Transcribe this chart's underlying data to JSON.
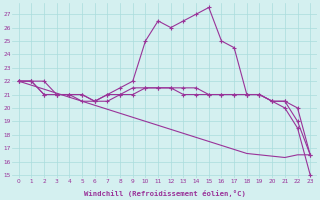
{
  "x": [
    0,
    1,
    2,
    3,
    4,
    5,
    6,
    7,
    8,
    9,
    10,
    11,
    12,
    13,
    14,
    15,
    16,
    17,
    18,
    19,
    20,
    21,
    22,
    23
  ],
  "line_peak": [
    22,
    22,
    21,
    21,
    21,
    21,
    20.5,
    21,
    21.5,
    22,
    25,
    26.5,
    26,
    26.5,
    27,
    27.5,
    25,
    24.5,
    21,
    21,
    20.5,
    20,
    18.5,
    15
  ],
  "line_mid1": [
    22,
    22,
    22,
    21,
    21,
    20.5,
    20.5,
    20.5,
    21,
    21,
    21.5,
    21.5,
    21.5,
    21,
    21,
    21,
    21,
    21,
    21,
    21,
    20.5,
    20.5,
    19,
    16.5
  ],
  "line_mid2": [
    22,
    22,
    21,
    21,
    21,
    21,
    20.5,
    21,
    21,
    21.5,
    21.5,
    21.5,
    21.5,
    21.5,
    21.5,
    21,
    21,
    21,
    21,
    21,
    20.5,
    20.5,
    20,
    16.5
  ],
  "line_diag": [
    22,
    21.7,
    21.4,
    21.1,
    20.8,
    20.5,
    20.2,
    19.9,
    19.6,
    19.3,
    19.0,
    18.7,
    18.4,
    18.1,
    17.8,
    17.5,
    17.2,
    16.9,
    16.6,
    16.5,
    16.4,
    16.3,
    16.5,
    16.5
  ],
  "bg_color": "#d4f0f0",
  "grid_color": "#aadddd",
  "line_color": "#993399",
  "xlabel": "Windchill (Refroidissement éolien,°C)",
  "ylim": [
    14.8,
    27.8
  ],
  "xlim": [
    -0.5,
    23.5
  ],
  "yticks": [
    15,
    16,
    17,
    18,
    19,
    20,
    21,
    22,
    23,
    24,
    25,
    26,
    27
  ],
  "xticks": [
    0,
    1,
    2,
    3,
    4,
    5,
    6,
    7,
    8,
    9,
    10,
    11,
    12,
    13,
    14,
    15,
    16,
    17,
    18,
    19,
    20,
    21,
    22,
    23
  ]
}
